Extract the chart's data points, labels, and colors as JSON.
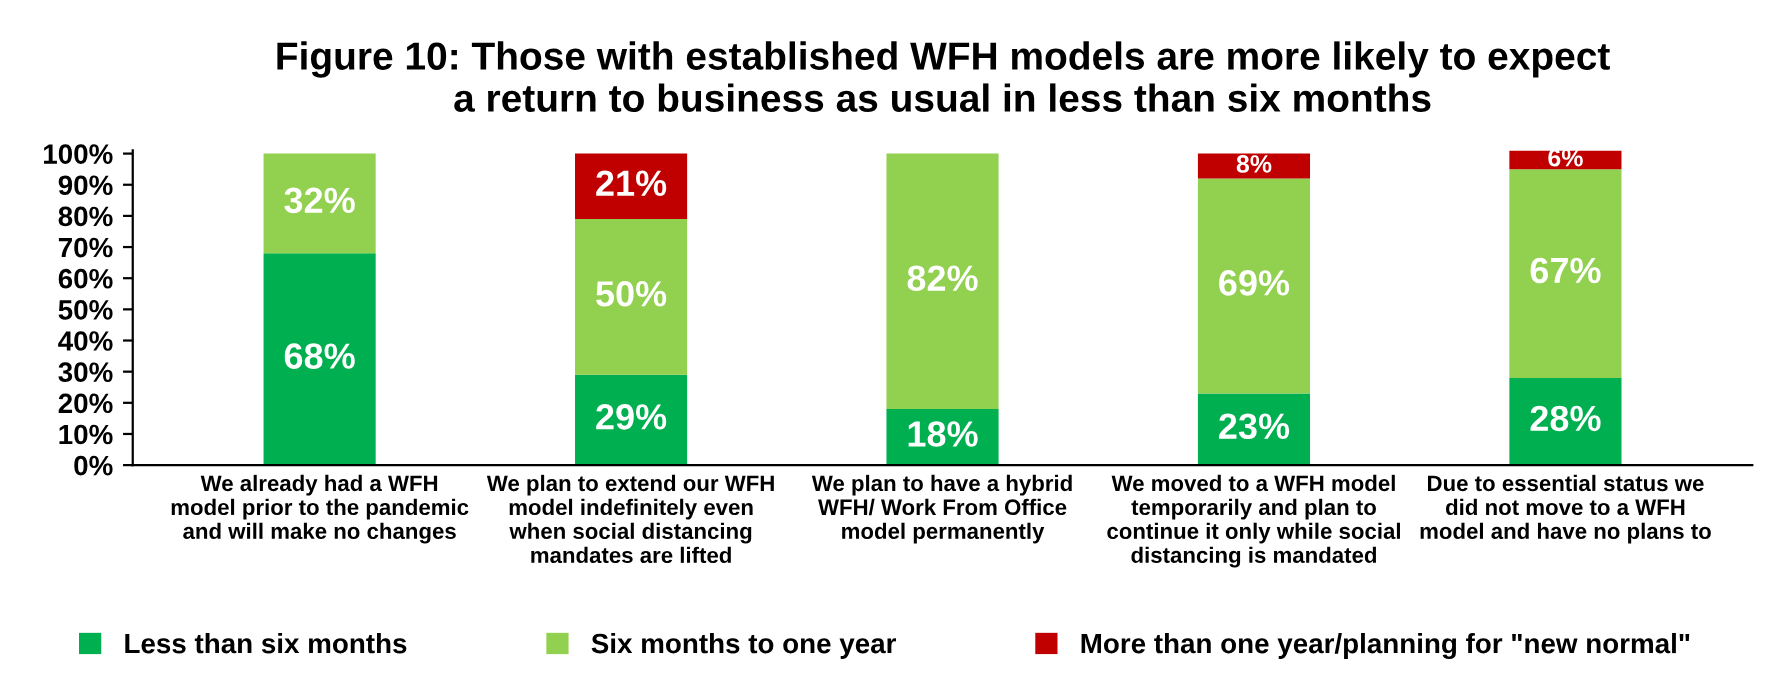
{
  "chart_data": {
    "type": "bar",
    "title": "Figure 10: Those with established WFH models are more likely to expect\na return to business as usual in less than six months",
    "categories": [
      "We already had a WFH\nmodel prior to the pandemic\nand will make no changes",
      "We plan to extend our WFH\nmodel indefinitely even\nwhen social distancing\nmandates are lifted",
      "We plan to have a hybrid\nWFH/ Work From Office\nmodel permanently",
      "We moved to a WFH model\ntemporarily and plan to\ncontinue it only while social\ndistancing is mandated",
      "Due to essential status we\ndid not move to a WFH\nmodel and have no plans to"
    ],
    "series": [
      {
        "name": "Less than six months",
        "color": "#00b050",
        "values": [
          68,
          29,
          18,
          23,
          28
        ],
        "value_labels": [
          "68%",
          "29%",
          "18%",
          "23%",
          "28%"
        ]
      },
      {
        "name": "Six months to one year",
        "color": "#92d050",
        "values": [
          32,
          50,
          82,
          69,
          67
        ],
        "value_labels": [
          "32%",
          "50%",
          "82%",
          "69%",
          "67%"
        ]
      },
      {
        "name": "More than one year/planning for \"new normal\"",
        "color": "#c00000",
        "values": [
          null,
          21,
          null,
          8,
          6
        ],
        "value_labels": [
          null,
          "21%",
          null,
          "8%",
          "6%"
        ]
      }
    ],
    "stacked": true,
    "ylim": [
      0,
      101
    ],
    "yticks": [
      {
        "value": 0,
        "label": "0%"
      },
      {
        "value": 10,
        "label": "10%"
      },
      {
        "value": 20,
        "label": "20%"
      },
      {
        "value": 30,
        "label": "30%"
      },
      {
        "value": 40,
        "label": "40%"
      },
      {
        "value": 50,
        "label": "50%"
      },
      {
        "value": 60,
        "label": "60%"
      },
      {
        "value": 70,
        "label": "70%"
      },
      {
        "value": 80,
        "label": "80%"
      },
      {
        "value": 90,
        "label": "90%"
      },
      {
        "value": 100,
        "label": "100%"
      }
    ],
    "grid": false,
    "legend": "bottom"
  }
}
